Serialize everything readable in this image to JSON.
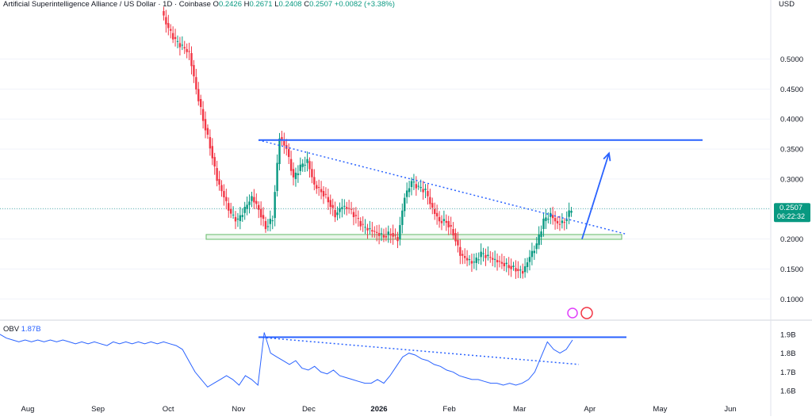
{
  "header": {
    "symbol": "Artificial Superintelligence Alliance / US Dollar · 1D · Coinbase",
    "open_label": "O",
    "open": "0.2426",
    "high_label": "H",
    "high": "0.2671",
    "low_label": "L",
    "low": "0.2408",
    "close_label": "C",
    "close": "0.2507",
    "change": "+0.0082 (+3.38%)"
  },
  "currency": "USD",
  "price_badge": {
    "price": "0.2507",
    "countdown": "06:22:32",
    "color": "#089981"
  },
  "colors": {
    "up": "#089981",
    "down": "#f23645",
    "line": "#2962ff",
    "zone_fill": "#e8f5e9",
    "zone_border": "#66bb6a",
    "grid": "#f0f3fa"
  },
  "obv_panel": {
    "label": "OBV",
    "value": "1.87B"
  },
  "chart_data": [
    {
      "type": "candlestick",
      "ylim": [
        0.07,
        0.58
      ],
      "yticks": [
        "0.1000",
        "0.1500",
        "0.2000",
        "0.2500",
        "0.3000",
        "0.3500",
        "0.4000",
        "0.4500",
        "0.5000"
      ],
      "xticks": [
        "Aug",
        "Sep",
        "Oct",
        "Nov",
        "Dec",
        "2026",
        "Feb",
        "Mar",
        "Apr",
        "May",
        "Jun"
      ],
      "close_path": [
        0.58,
        0.55,
        0.53,
        0.52,
        0.51,
        0.45,
        0.4,
        0.355,
        0.3,
        0.27,
        0.24,
        0.23,
        0.25,
        0.27,
        0.25,
        0.22,
        0.235,
        0.37,
        0.35,
        0.3,
        0.32,
        0.33,
        0.29,
        0.28,
        0.265,
        0.24,
        0.255,
        0.25,
        0.235,
        0.22,
        0.215,
        0.21,
        0.205,
        0.21,
        0.2,
        0.27,
        0.295,
        0.285,
        0.28,
        0.25,
        0.23,
        0.23,
        0.21,
        0.175,
        0.165,
        0.16,
        0.175,
        0.17,
        0.165,
        0.16,
        0.155,
        0.15,
        0.145,
        0.17,
        0.19,
        0.23,
        0.24,
        0.225,
        0.23,
        0.2507
      ],
      "annotations": {
        "resistance": 0.365,
        "support_zone": [
          0.1995,
          0.2075
        ],
        "trendline_start": 0.365,
        "trendline_end": 0.208,
        "projection_from": 0.2,
        "projection_to": 0.343
      }
    },
    {
      "type": "line",
      "name": "OBV",
      "yticks": [
        "1.6B",
        "1.7B",
        "1.8B",
        "1.9B"
      ],
      "ylim": [
        1.55,
        1.95
      ],
      "values": [
        1.9,
        1.88,
        1.87,
        1.86,
        1.87,
        1.86,
        1.87,
        1.86,
        1.87,
        1.86,
        1.87,
        1.86,
        1.85,
        1.86,
        1.85,
        1.86,
        1.85,
        1.84,
        1.86,
        1.85,
        1.86,
        1.85,
        1.86,
        1.85,
        1.86,
        1.85,
        1.86,
        1.85,
        1.84,
        1.82,
        1.76,
        1.7,
        1.66,
        1.62,
        1.64,
        1.66,
        1.68,
        1.66,
        1.63,
        1.68,
        1.66,
        1.63,
        1.91,
        1.8,
        1.78,
        1.76,
        1.74,
        1.76,
        1.72,
        1.71,
        1.73,
        1.7,
        1.69,
        1.71,
        1.68,
        1.67,
        1.66,
        1.65,
        1.64,
        1.64,
        1.66,
        1.64,
        1.68,
        1.73,
        1.78,
        1.8,
        1.79,
        1.77,
        1.76,
        1.74,
        1.73,
        1.71,
        1.7,
        1.68,
        1.67,
        1.66,
        1.66,
        1.65,
        1.64,
        1.64,
        1.63,
        1.64,
        1.63,
        1.64,
        1.66,
        1.7,
        1.78,
        1.86,
        1.82,
        1.8,
        1.82,
        1.87
      ],
      "annotations": {
        "resistance": 1.885,
        "trendline_start": 1.885,
        "trendline_end": 1.74
      }
    }
  ]
}
